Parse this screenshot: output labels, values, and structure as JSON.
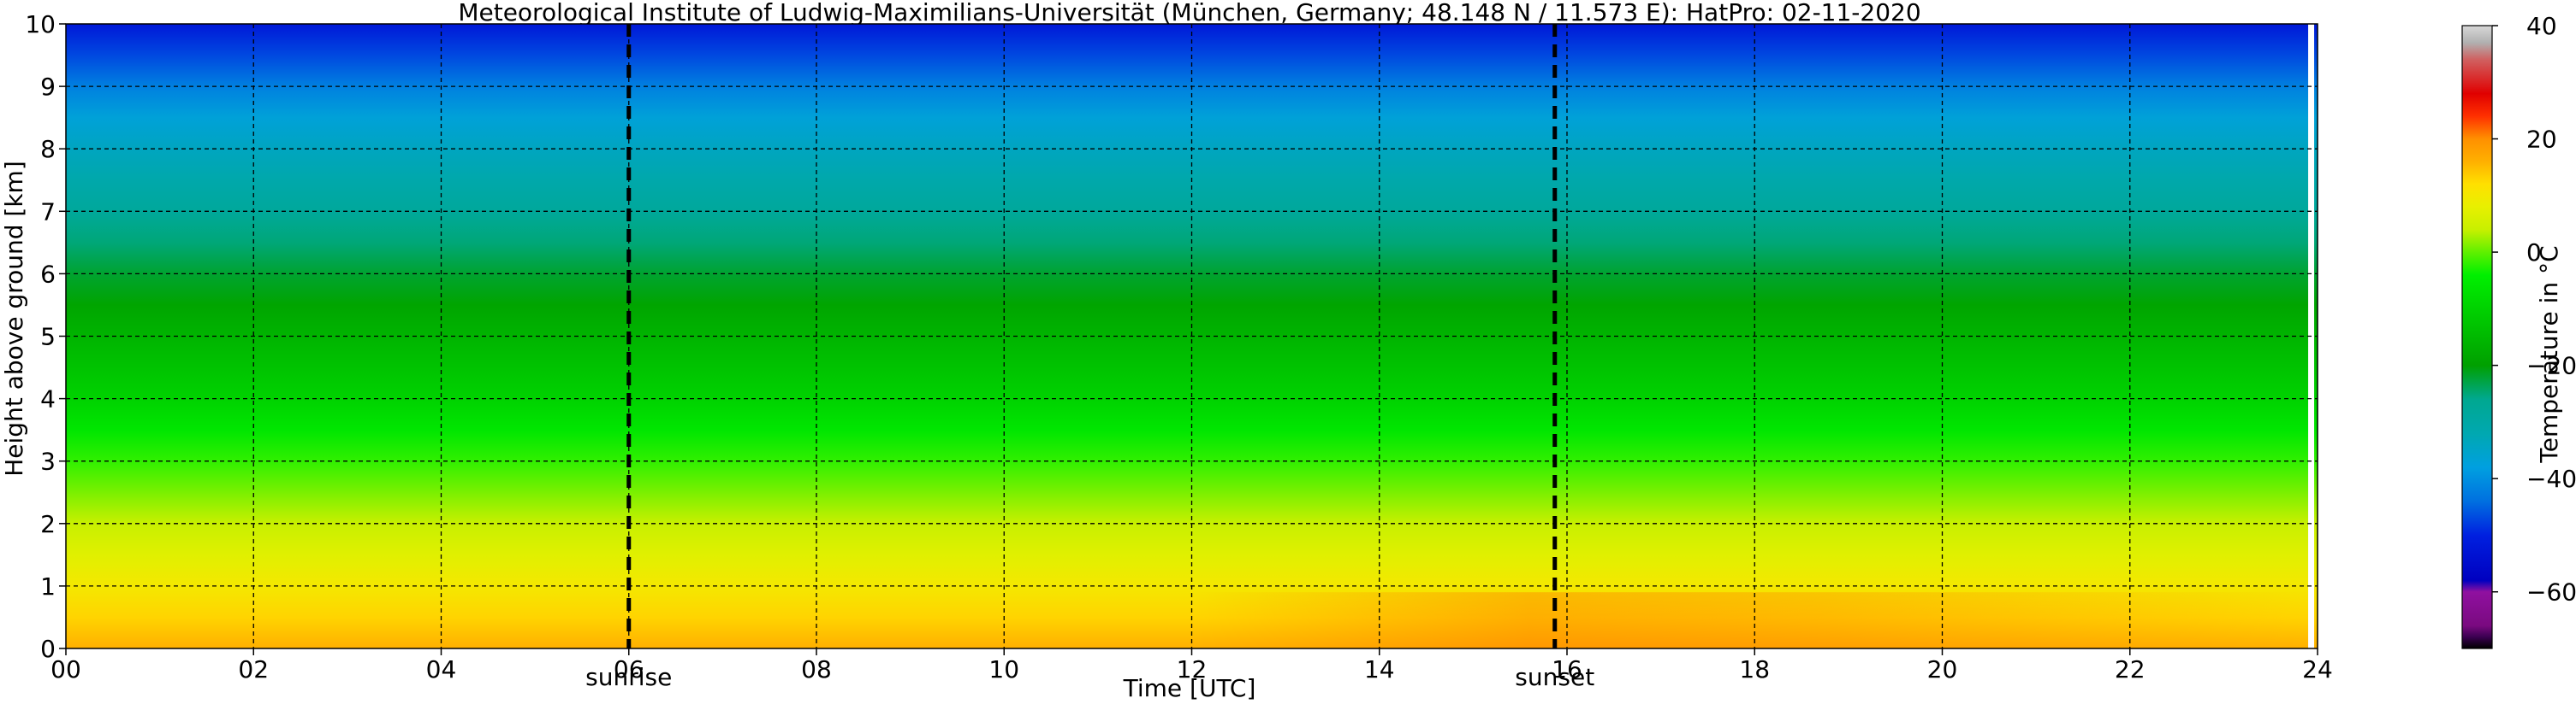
{
  "chart_data": {
    "type": "heatmap",
    "title": "Meteorological Institute of Ludwig-Maximilians-Universität (München, Germany; 48.148 N / 11.573 E):    HatPro: 02-11-2020",
    "xlabel": "Time [UTC]",
    "ylabel": "Height above ground [km]",
    "xlim": [
      0,
      24
    ],
    "ylim": [
      0,
      10
    ],
    "x_ticks": [
      "00",
      "02",
      "04",
      "06",
      "08",
      "10",
      "12",
      "14",
      "16",
      "18",
      "20",
      "22",
      "24"
    ],
    "y_ticks": [
      "0",
      "1",
      "2",
      "3",
      "4",
      "5",
      "6",
      "7",
      "8",
      "9",
      "10"
    ],
    "grid": true,
    "events": [
      {
        "label": "sunrise",
        "time": 6.0
      },
      {
        "label": "sunset",
        "time": 15.87
      }
    ],
    "data_gap_time": 23.9,
    "temperature_profile": {
      "height_km": [
        0,
        0.5,
        1,
        1.5,
        2,
        2.5,
        3,
        3.5,
        4,
        4.5,
        5,
        5.5,
        6,
        6.5,
        7,
        7.5,
        8,
        8.5,
        9,
        9.5,
        10
      ],
      "temp_c": [
        16,
        13,
        10,
        7,
        4,
        1,
        -2,
        -6,
        -10,
        -13,
        -16,
        -19,
        -22,
        -25,
        -28,
        -31,
        -34,
        -37,
        -42,
        -47,
        -52
      ]
    },
    "colorbar": {
      "label": "Temperature in °C",
      "range": [
        -70,
        40
      ],
      "ticks": [
        "−60",
        "−40",
        "−20",
        "0",
        "20",
        "40"
      ],
      "tick_values": [
        -60,
        -40,
        -20,
        0,
        20,
        40
      ],
      "stops": [
        {
          "t": -70,
          "color": "#000000"
        },
        {
          "t": -68,
          "color": "#3a0050"
        },
        {
          "t": -66,
          "color": "#7a0a80"
        },
        {
          "t": -60,
          "color": "#9010a0"
        },
        {
          "t": -58,
          "color": "#0000c0"
        },
        {
          "t": -50,
          "color": "#0020e0"
        },
        {
          "t": -44,
          "color": "#0070e0"
        },
        {
          "t": -38,
          "color": "#00a0e0"
        },
        {
          "t": -32,
          "color": "#00a8b0"
        },
        {
          "t": -26,
          "color": "#00a890"
        },
        {
          "t": -20,
          "color": "#00a000"
        },
        {
          "t": -12,
          "color": "#00c800"
        },
        {
          "t": -4,
          "color": "#00f000"
        },
        {
          "t": 0,
          "color": "#60f000"
        },
        {
          "t": 4,
          "color": "#c8f000"
        },
        {
          "t": 8,
          "color": "#e8f000"
        },
        {
          "t": 12,
          "color": "#ffe000"
        },
        {
          "t": 16,
          "color": "#ffb000"
        },
        {
          "t": 20,
          "color": "#ff9000"
        },
        {
          "t": 24,
          "color": "#ff3000"
        },
        {
          "t": 28,
          "color": "#e00000"
        },
        {
          "t": 34,
          "color": "#d06060"
        },
        {
          "t": 37,
          "color": "#b0b0b0"
        },
        {
          "t": 40,
          "color": "#d8d8d8"
        }
      ]
    }
  }
}
